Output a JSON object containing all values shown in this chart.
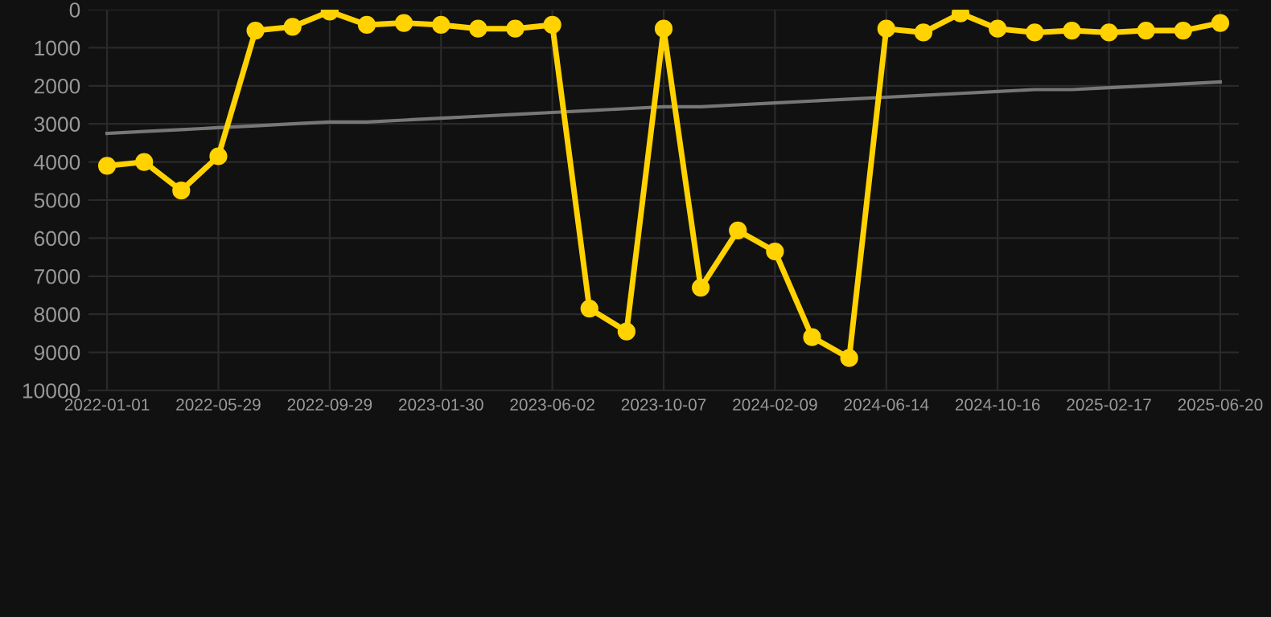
{
  "chart_data": {
    "type": "line",
    "categories": [
      "2022-01-01",
      null,
      null,
      "2022-05-29",
      null,
      null,
      "2022-09-29",
      null,
      null,
      "2023-01-30",
      null,
      null,
      "2023-06-02",
      null,
      null,
      "2023-10-07",
      null,
      null,
      "2024-02-09",
      null,
      null,
      "2024-06-14",
      null,
      null,
      "2024-10-16",
      null,
      null,
      "2025-02-17",
      null,
      null,
      "2025-06-20"
    ],
    "series": [
      {
        "color": "#ffd200",
        "marker": "circle",
        "values": [
          4100,
          4000,
          4750,
          3850,
          550,
          450,
          50,
          400,
          350,
          400,
          500,
          500,
          400,
          7850,
          8450,
          500,
          7300,
          5800,
          6350,
          8600,
          9150,
          500,
          600,
          100,
          500,
          600,
          550,
          600,
          550,
          550,
          350
        ]
      },
      {
        "type": "line",
        "color": "#777777",
        "marker": "none",
        "values": [
          3250,
          3200,
          3150,
          3100,
          3050,
          3000,
          2950,
          2950,
          2900,
          2850,
          2800,
          2750,
          2700,
          2650,
          2600,
          2550,
          2550,
          2500,
          2450,
          2400,
          2350,
          2300,
          2250,
          2200,
          2150,
          2100,
          2100,
          2050,
          2000,
          1950,
          1900
        ]
      }
    ],
    "ylim": [
      10000,
      0
    ],
    "yticks": [
      0,
      1000,
      2000,
      3000,
      4000,
      5000,
      6000,
      7000,
      8000,
      9000,
      10000
    ],
    "grid": true
  }
}
